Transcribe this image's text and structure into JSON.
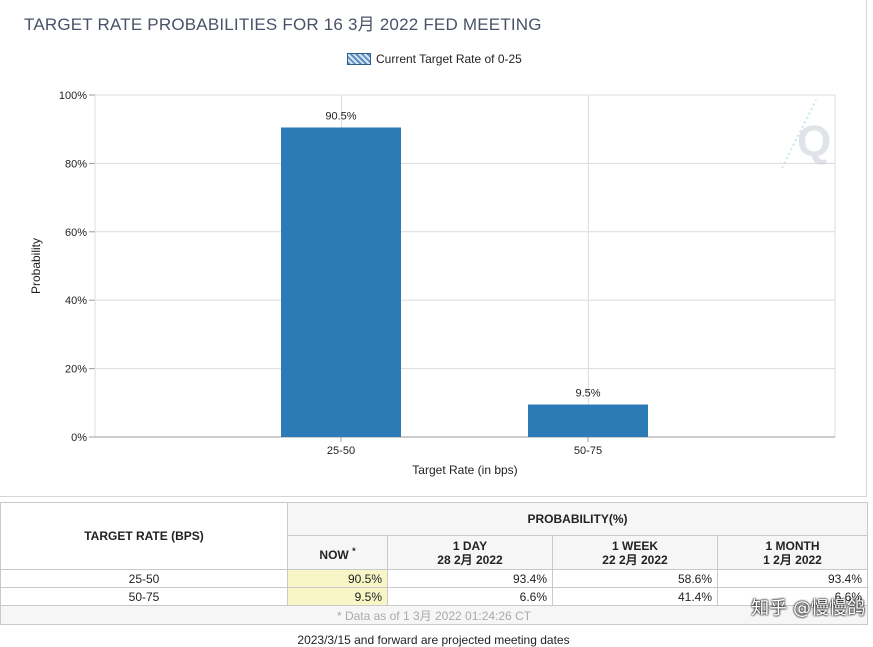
{
  "title": "TARGET RATE PROBABILITIES FOR 16 3月 2022 FED MEETING",
  "legend": {
    "label": "Current Target Rate of 0-25"
  },
  "chart_data": {
    "type": "bar",
    "categories": [
      "25-50",
      "50-75"
    ],
    "values": [
      90.5,
      9.5
    ],
    "data_labels": [
      "90.5%",
      "9.5%"
    ],
    "xlabel": "Target Rate (in bps)",
    "ylabel": "Probability",
    "ylim": [
      0,
      100
    ],
    "yticks": [
      "0%",
      "20%",
      "40%",
      "60%",
      "80%",
      "100%"
    ],
    "bar_color": "#2c7bb6",
    "grid": true
  },
  "table": {
    "target_header": "TARGET RATE (BPS)",
    "prob_header": "PROBABILITY(%)",
    "now_label": "NOW",
    "now_marker": "*",
    "cols": [
      {
        "line1": "1 DAY",
        "line2": "28 2月 2022"
      },
      {
        "line1": "1 WEEK",
        "line2": "22 2月 2022"
      },
      {
        "line1": "1 MONTH",
        "line2": "1 2月 2022"
      }
    ],
    "rows": [
      {
        "rate": "25-50",
        "now": "90.5%",
        "day": "93.4%",
        "week": "58.6%",
        "month": "93.4%"
      },
      {
        "rate": "50-75",
        "now": "9.5%",
        "day": "6.6%",
        "week": "41.4%",
        "month": "6.6%"
      }
    ],
    "note": "* Data as of 1 3月 2022 01:24:26 CT"
  },
  "footer": "2023/3/15 and forward are projected meeting dates",
  "watermark": "知乎 @慢慢鸽"
}
